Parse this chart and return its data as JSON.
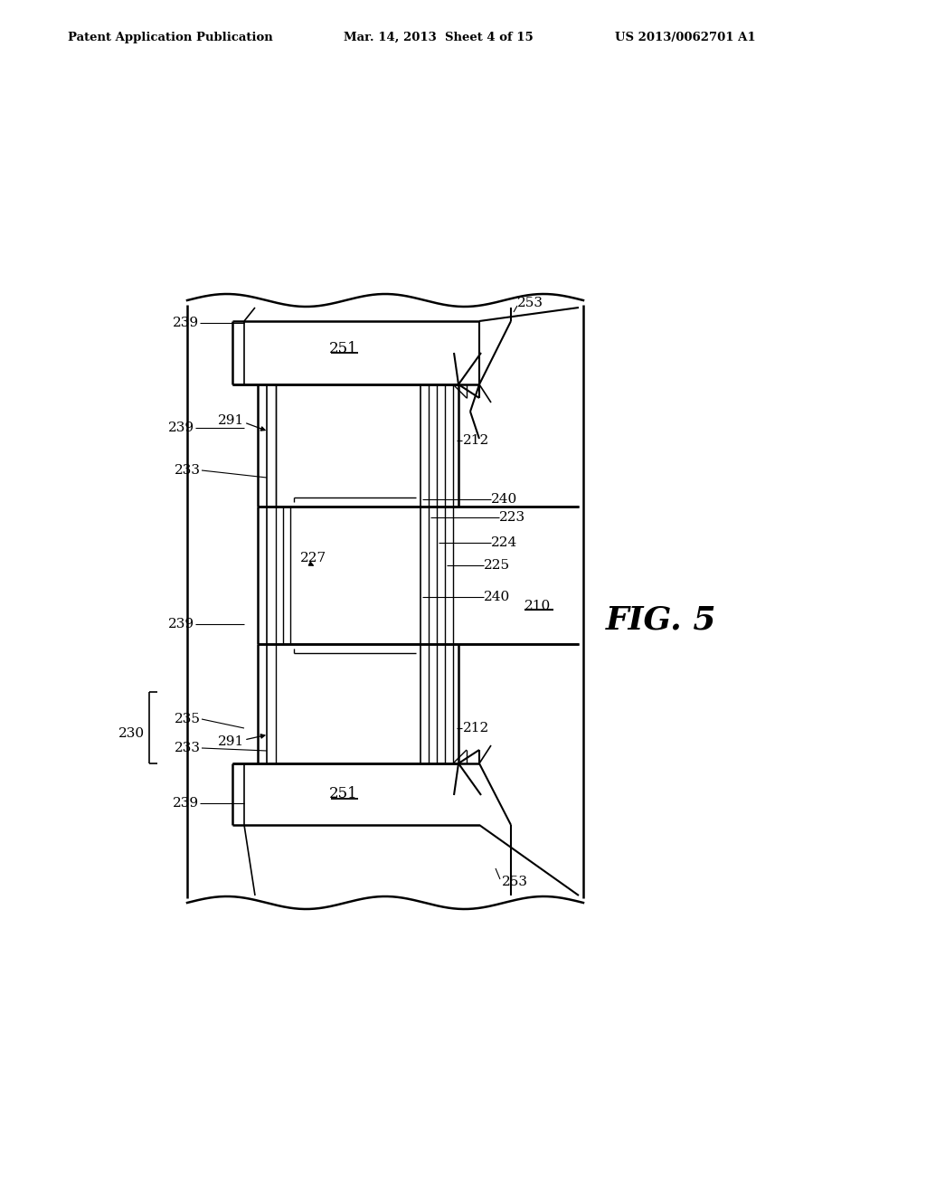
{
  "header_left": "Patent Application Publication",
  "header_mid": "Mar. 14, 2013  Sheet 4 of 15",
  "header_right": "US 2013/0062701 A1",
  "fig_label": "FIG. 5",
  "background": "#ffffff",
  "line_color": "#000000"
}
